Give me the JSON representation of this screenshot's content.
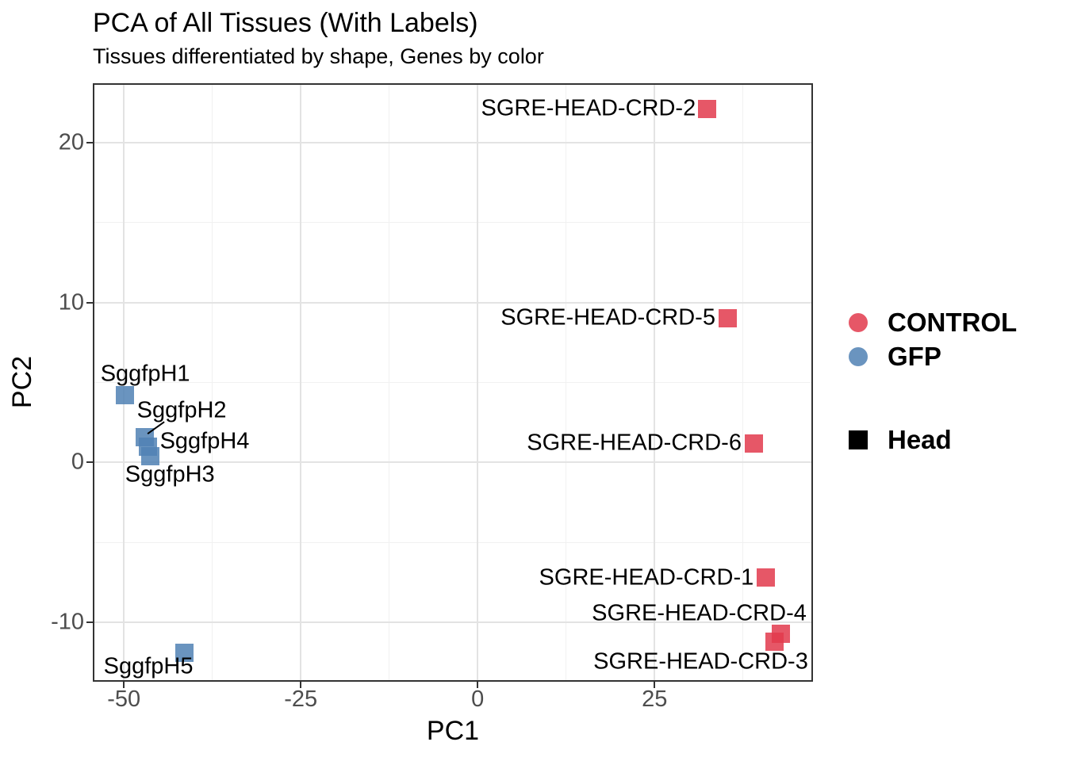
{
  "chart_data": {
    "type": "scatter",
    "title": "PCA of All Tissues (With Labels)",
    "subtitle": "Tissues differentiated by shape, Genes by color",
    "xlabel": "PC1",
    "ylabel": "PC2",
    "xlim": [
      -54.4,
      47.4
    ],
    "ylim": [
      -13.7,
      23.7
    ],
    "grid": true,
    "legend_position": "right",
    "x_ticks": [
      -50,
      -25,
      0,
      25
    ],
    "x_tick_labels": [
      "-50",
      "-25",
      "0",
      "25"
    ],
    "x_minor_ticks": [
      -37.5,
      -12.5,
      12.5,
      37.5
    ],
    "y_ticks": [
      20,
      10,
      0,
      -10
    ],
    "y_tick_labels": [
      "20",
      "10",
      "0",
      "-10"
    ],
    "y_minor_ticks": [
      15,
      5,
      -5
    ],
    "fill_opacity": 0.85,
    "marker_shape": "square",
    "series": [
      {
        "name": "CONTROL",
        "color": "#E2394C",
        "points": [
          {
            "label": "SGRE-HEAD-CRD-2",
            "x": 32.4,
            "y": 22.1,
            "anchor": "end",
            "dx": -14,
            "dy": 0
          },
          {
            "label": "SGRE-HEAD-CRD-5",
            "x": 35.4,
            "y": 9.0,
            "anchor": "end",
            "dx": -16,
            "dy": -1
          },
          {
            "label": "SGRE-HEAD-CRD-6",
            "x": 39.1,
            "y": 1.2,
            "anchor": "end",
            "dx": -16,
            "dy": 0
          },
          {
            "label": "SGRE-HEAD-CRD-1",
            "x": 40.7,
            "y": -7.2,
            "anchor": "end",
            "dx": -15,
            "dy": 0
          },
          {
            "label": "SGRE-HEAD-CRD-4",
            "x": 42.9,
            "y": -10.7,
            "anchor": "end",
            "dx": 32,
            "dy": -25
          },
          {
            "label": "SGRE-HEAD-CRD-3",
            "x": 42.0,
            "y": -11.2,
            "anchor": "end",
            "dx": 42,
            "dy": 25
          }
        ]
      },
      {
        "name": "GFP",
        "color": "#5081B4",
        "points": [
          {
            "label": "SggfpH1",
            "x": -49.9,
            "y": 4.2,
            "anchor": "middle",
            "dx": 26,
            "dy": -27
          },
          {
            "label": "SggfpH2",
            "x": -47.1,
            "y": 1.6,
            "anchor": "middle",
            "dx": 47,
            "dy": -33,
            "leader": [
              25,
              -19,
              4,
              -4
            ]
          },
          {
            "label": "SggfpH4",
            "x": -46.6,
            "y": 1.0,
            "anchor": "start",
            "dx": 15,
            "dy": -6
          },
          {
            "label": "SggfpH3",
            "x": -46.3,
            "y": 0.4,
            "anchor": "middle",
            "dx": 25,
            "dy": 24
          },
          {
            "label": "SggfpH5",
            "x": -41.5,
            "y": -11.9,
            "anchor": "middle",
            "dx": -45,
            "dy": 17
          }
        ]
      }
    ]
  },
  "legend": {
    "sections": [
      {
        "items": [
          {
            "label": "CONTROL",
            "shape": "circle",
            "color": "#E2394C"
          },
          {
            "label": "GFP",
            "shape": "circle",
            "color": "#5081B4"
          }
        ]
      },
      {
        "items": [
          {
            "label": "Head",
            "shape": "square",
            "color": "#000000"
          }
        ]
      }
    ]
  }
}
